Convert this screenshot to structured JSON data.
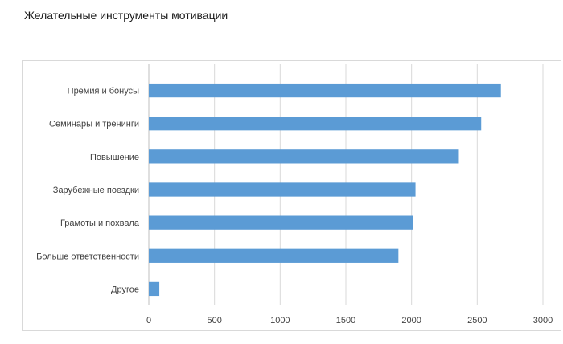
{
  "page": {
    "title": "Желательные инструменты мотивации"
  },
  "chart_data": {
    "type": "bar",
    "orientation": "horizontal",
    "title": "",
    "xlabel": "",
    "ylabel": "",
    "categories": [
      "Премия и бонусы",
      "Семинары и тренинги",
      "Повышение",
      "Зарубежные поездки",
      "Грамоты и похвала",
      "Больше ответственности",
      "Другое"
    ],
    "values": [
      2680,
      2530,
      2360,
      2030,
      2010,
      1900,
      80
    ],
    "xlim": [
      0,
      3000
    ],
    "xticks": [
      0,
      500,
      1000,
      1500,
      2000,
      2500,
      3000
    ],
    "grid": "vertical",
    "bar_color": "#5b9bd5",
    "grid_color": "#d9d9d9",
    "axis_color": "#bfbfbf"
  }
}
